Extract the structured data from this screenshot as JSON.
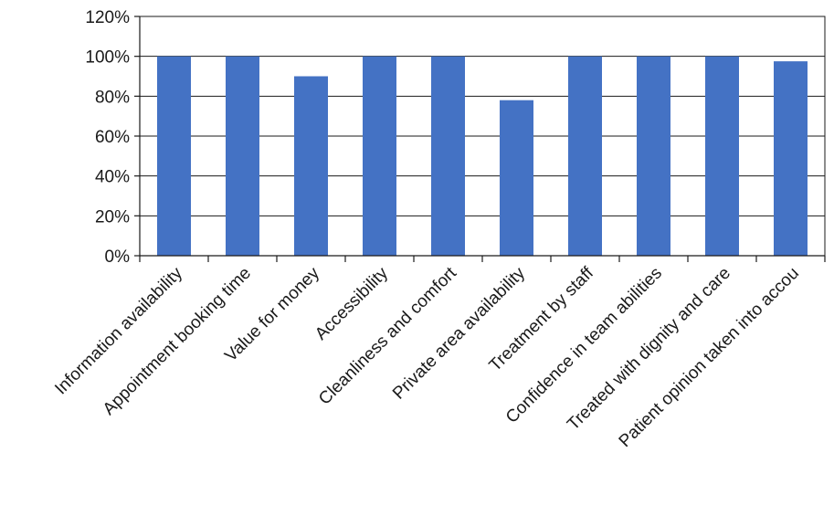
{
  "chart_data": {
    "type": "bar",
    "title": "",
    "xlabel": "",
    "ylabel": "",
    "ylim": [
      0,
      1.2
    ],
    "yticks": [
      0,
      0.2,
      0.4,
      0.6,
      0.8,
      1.0,
      1.2
    ],
    "ytick_labels": [
      "0%",
      "20%",
      "40%",
      "60%",
      "80%",
      "100%",
      "120%"
    ],
    "grid": true,
    "legend": "none",
    "bar_color": "#4472C4",
    "categories": [
      "Information availability",
      "Appointment booking time",
      "Value for money",
      "Accessibility",
      "Cleanliness and comfort",
      "Private area availability",
      "Treatment by staff",
      "Confidence in team abilities",
      "Treated with dignity and care",
      "Patient opinion taken into accou"
    ],
    "values": [
      1.0,
      1.0,
      0.9,
      1.0,
      1.0,
      0.78,
      1.0,
      1.0,
      1.0,
      0.975
    ]
  }
}
